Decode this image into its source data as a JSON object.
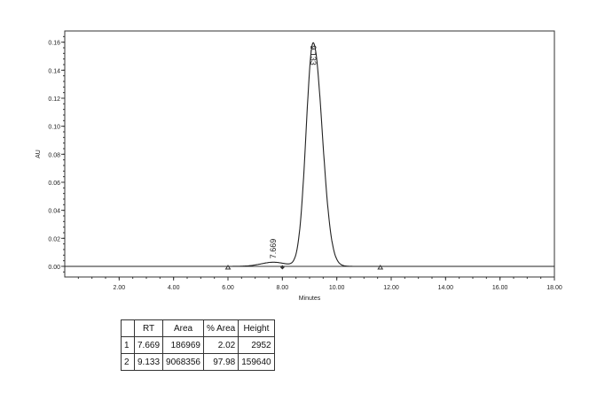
{
  "chart_data": {
    "type": "line",
    "title": "",
    "xlabel": "Minutes",
    "ylabel": "AU",
    "xlim": [
      0,
      18
    ],
    "ylim": [
      -0.0076,
      0.168
    ],
    "x_ticks": [
      "2.00",
      "4.00",
      "6.00",
      "8.00",
      "10.00",
      "12.00",
      "14.00",
      "16.00",
      "18.00"
    ],
    "y_ticks": [
      "0.00",
      "0.02",
      "0.04",
      "0.06",
      "0.08",
      "0.10",
      "0.12",
      "0.14",
      "0.16"
    ],
    "grid": false,
    "line_color": "#222222",
    "peaks": [
      {
        "label": "7.669",
        "rt": 7.669,
        "height_au": 0.00295
      },
      {
        "label": "9.133",
        "rt": 9.133,
        "height_au": 0.15964
      }
    ],
    "integration_markers": [
      {
        "x": 6.0,
        "shape": "triangle"
      },
      {
        "x": 8.0,
        "shape": "diamond"
      },
      {
        "x": 11.6,
        "shape": "triangle"
      }
    ]
  },
  "table": {
    "headers": [
      "",
      "RT",
      "Area",
      "% Area",
      "Height"
    ],
    "rows": [
      [
        "1",
        "7.669",
        "186969",
        "2.02",
        "2952"
      ],
      [
        "2",
        "9.133",
        "9068356",
        "97.98",
        "159640"
      ]
    ]
  }
}
